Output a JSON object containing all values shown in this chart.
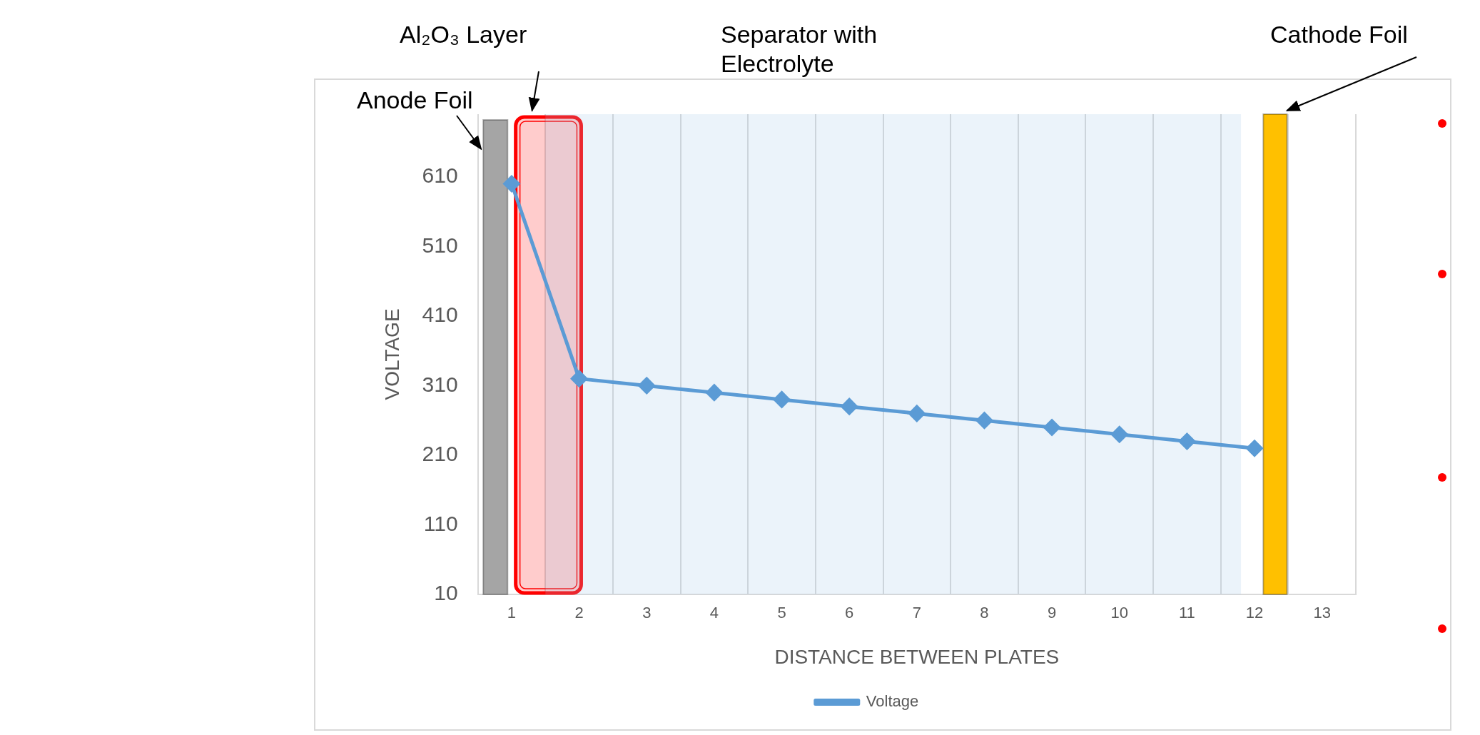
{
  "chart_data": {
    "type": "line",
    "x": [
      1,
      2,
      3,
      4,
      5,
      6,
      7,
      8,
      9,
      10,
      11,
      12
    ],
    "series": [
      {
        "name": "Voltage",
        "color": "#5b9bd5",
        "values": [
          600,
          320,
          310,
          300,
          290,
          280,
          270,
          260,
          250,
          240,
          230,
          220
        ]
      }
    ],
    "xlabel": "DISTANCE BETWEEN PLATES",
    "ylabel": "VOLTAGE",
    "xlim": [
      0.5,
      13.5
    ],
    "xticks": [
      {
        "value": 0.5,
        "label": null
      },
      1,
      {
        "value": 1.5,
        "label": null
      },
      2,
      {
        "value": 2.5,
        "label": null
      },
      3,
      {
        "value": 3.5,
        "label": null
      },
      4,
      {
        "value": 4.5,
        "label": null
      },
      5,
      {
        "value": 5.5,
        "label": null
      },
      6,
      {
        "value": 6.5,
        "label": null
      },
      7,
      {
        "value": 7.5,
        "label": null
      },
      8,
      {
        "value": 8.5,
        "label": null
      },
      9,
      {
        "value": 9.5,
        "label": null
      },
      10,
      {
        "value": 10.5,
        "label": null
      },
      11,
      {
        "value": 11.5,
        "label": null
      },
      12,
      {
        "value": 12.5,
        "label": null
      },
      13,
      {
        "value": 13.5,
        "label": null
      }
    ],
    "ylim": [
      10,
      700
    ],
    "yticks": [
      10,
      110,
      210,
      310,
      410,
      510,
      610
    ],
    "bands": [
      {
        "axis": "x",
        "from": 0.58,
        "to": 0.94,
        "label": "Anode Foil",
        "color": "#a5a5a5"
      },
      {
        "axis": "x",
        "from": 1.06,
        "to": 2.03,
        "label": "Al₂O₃ Layer",
        "color": "#ff0000"
      },
      {
        "axis": "x",
        "from": 1.5,
        "to": 11.8,
        "label": "Separator with Electrolyte",
        "color": "#9dc3e6"
      },
      {
        "axis": "x",
        "from": 12.13,
        "to": 12.48,
        "label": "Cathode Foil",
        "color": "#ffc000"
      }
    ],
    "grid": "x",
    "legend": "bottom",
    "marker": "diamond",
    "line_style": "solid"
  }
}
